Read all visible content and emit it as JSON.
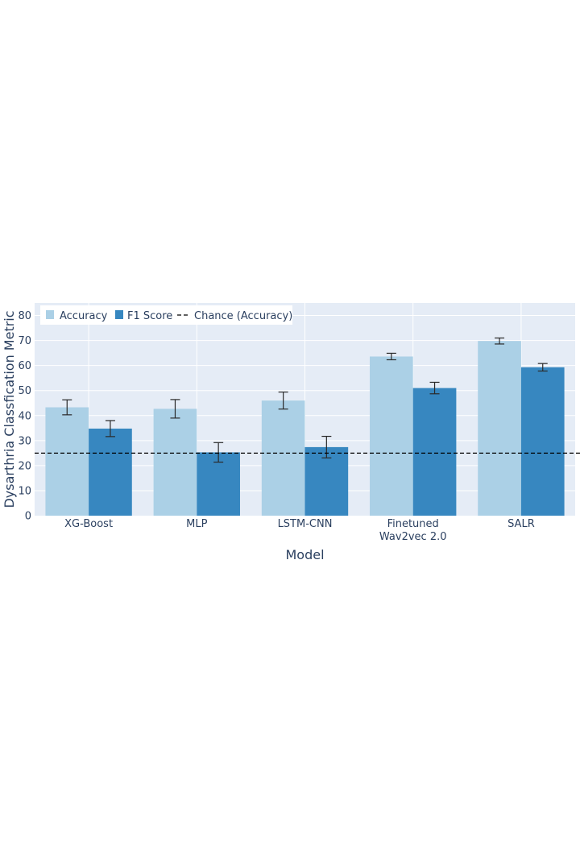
{
  "chart_data": {
    "type": "bar",
    "title": "",
    "xlabel": "Model",
    "ylabel": "Dysarthria Classfication Metric",
    "ylim": [
      0,
      85
    ],
    "yticks": [
      0,
      10,
      20,
      30,
      40,
      50,
      60,
      70,
      80
    ],
    "grid": true,
    "legend_position": "top-left",
    "categories": [
      [
        "XG-Boost"
      ],
      [
        "MLP"
      ],
      [
        "LSTM-CNN"
      ],
      [
        "Finetuned",
        "Wav2vec 2.0"
      ],
      [
        "SALR"
      ]
    ],
    "series": [
      {
        "name": "Accuracy",
        "color": "#abd0e6",
        "values": [
          43.3,
          42.7,
          46.0,
          63.6,
          69.8
        ],
        "errors": [
          3.0,
          3.7,
          3.4,
          1.3,
          1.2
        ]
      },
      {
        "name": "F1 Score",
        "color": "#3787c0",
        "values": [
          34.8,
          25.3,
          27.4,
          51.0,
          59.3
        ],
        "errors": [
          3.2,
          3.9,
          4.3,
          2.3,
          1.5
        ]
      }
    ],
    "reference_line": {
      "name": "Chance (Accuracy)",
      "value": 25,
      "style": "dashed",
      "color": "#000000"
    },
    "plot_bgcolor": "#e5ecf6"
  }
}
